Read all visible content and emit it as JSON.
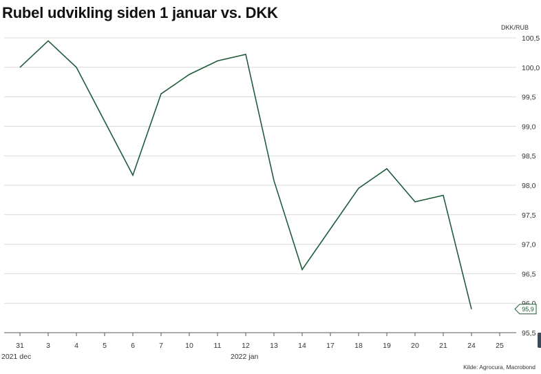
{
  "title": "Rubel udvikling siden 1 januar vs. DKK",
  "colors": {
    "line": "#1f5b3a",
    "grid": "#d9d9d9",
    "axis": "#555555",
    "text": "#333333"
  },
  "chart_data": {
    "type": "line",
    "x": [
      "31",
      "3",
      "4",
      "5",
      "6",
      "7",
      "10",
      "11",
      "12",
      "13",
      "14",
      "17",
      "18",
      "19",
      "20",
      "21",
      "24",
      "25"
    ],
    "x_group_labels": [
      {
        "label": "2021 dec",
        "at": "31"
      },
      {
        "label": "2022 jan",
        "at": "12"
      }
    ],
    "series": [
      {
        "values": [
          100.0,
          100.45,
          100.0,
          null,
          98.17,
          99.55,
          99.88,
          100.11,
          100.22,
          98.08,
          96.57,
          null,
          97.95,
          98.28,
          97.72,
          97.83,
          95.9,
          null
        ],
        "last_value_label": "95,9"
      }
    ],
    "y_unit": "DKK/RUB",
    "ylim": [
      95.5,
      100.5
    ],
    "y_ticks": [
      "100,5",
      "100,0",
      "99,5",
      "99,0",
      "98,5",
      "98,0",
      "97,5",
      "97,0",
      "96,5",
      "96,0",
      "95,5"
    ],
    "grid": true,
    "y_axis_position": "right",
    "source": "Kilde: Agrocura, Macrobond"
  }
}
